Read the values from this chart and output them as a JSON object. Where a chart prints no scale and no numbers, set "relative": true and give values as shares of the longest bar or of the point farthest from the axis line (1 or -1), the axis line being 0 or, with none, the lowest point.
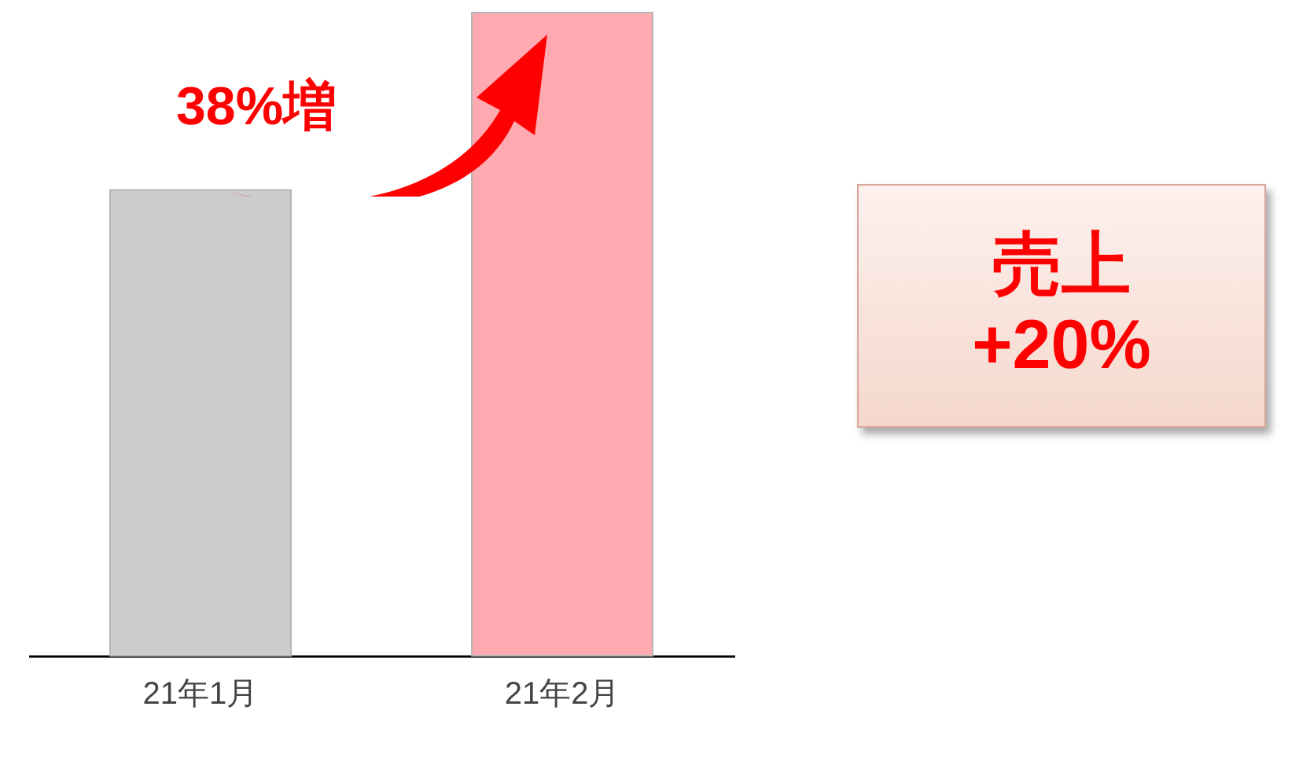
{
  "chart_data": {
    "type": "bar",
    "relative": true,
    "categories": [
      "21年1月",
      "21年2月"
    ],
    "values": [
      0.724,
      1
    ],
    "colors": [
      "#cccccc",
      "#ffaab0"
    ],
    "annotations": [
      "38%増",
      "売上\n+20%"
    ]
  }
}
